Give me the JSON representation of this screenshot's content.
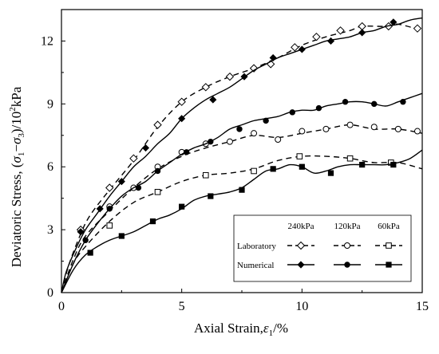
{
  "chart_data": {
    "type": "line",
    "xlabel": "Axial Strain,",
    "xlabel_symbol": "ε",
    "xlabel_sub": "1",
    "xlabel_unit": "/%",
    "ylabel_prefix": "Deviatoric Stress, (",
    "ylabel_s1": "σ",
    "ylabel_sub1": "1",
    "ylabel_minus": "−",
    "ylabel_s3": "σ",
    "ylabel_sub3": "3",
    "ylabel_suffix": ")/10",
    "ylabel_sup": "2",
    "ylabel_unit": "kPa",
    "xlim": [
      0,
      15
    ],
    "ylim": [
      0,
      13.5
    ],
    "xticks": [
      0,
      5,
      10,
      15
    ],
    "yticks": [
      0,
      3,
      6,
      9,
      12
    ],
    "grid": false,
    "legend": {
      "placement": "bottom-right",
      "columns": [
        "240kPa",
        "120kPa",
        "60kPa"
      ],
      "rows": [
        "Laboratory",
        "Numerical"
      ]
    },
    "series": [
      {
        "key": "lab240",
        "group": "240kPa",
        "kind": "Laboratory",
        "marker": "diamond-open",
        "dash": true,
        "x": [
          0,
          0.3,
          0.8,
          1.2,
          2,
          3,
          4,
          5,
          6,
          7,
          8,
          9,
          10,
          11,
          12,
          12.5,
          13.5,
          14,
          15
        ],
        "y": [
          0,
          1.3,
          2.8,
          3.7,
          4.9,
          6.3,
          7.9,
          9.1,
          9.8,
          10.3,
          10.7,
          11.2,
          11.8,
          12.2,
          12.5,
          12.7,
          12.7,
          12.8,
          12.5
        ],
        "markers": [
          [
            0.8,
            3.0
          ],
          [
            2.0,
            5.0
          ],
          [
            3.0,
            6.4
          ],
          [
            4.0,
            8.0
          ],
          [
            5.0,
            9.1
          ],
          [
            6.0,
            9.8
          ],
          [
            7.0,
            10.3
          ],
          [
            8.0,
            10.7
          ],
          [
            8.7,
            10.9
          ],
          [
            9.7,
            11.7
          ],
          [
            10.6,
            12.2
          ],
          [
            11.6,
            12.5
          ],
          [
            12.5,
            12.7
          ],
          [
            13.6,
            12.7
          ],
          [
            14.8,
            12.6
          ]
        ]
      },
      {
        "key": "lab120",
        "group": "120kPa",
        "kind": "Laboratory",
        "marker": "circle-open",
        "dash": true,
        "x": [
          0,
          0.5,
          1,
          2,
          3,
          4,
          5,
          6,
          7,
          8,
          9,
          10,
          11,
          12,
          13,
          14,
          15
        ],
        "y": [
          0,
          1.6,
          2.7,
          3.9,
          5.0,
          5.9,
          6.5,
          6.9,
          7.2,
          7.5,
          7.4,
          7.6,
          7.8,
          8.0,
          7.8,
          7.8,
          7.6
        ],
        "markers": [
          [
            2.0,
            4.1
          ],
          [
            3.0,
            5.0
          ],
          [
            4.0,
            6.0
          ],
          [
            5.0,
            6.7
          ],
          [
            6.0,
            7.1
          ],
          [
            7.0,
            7.2
          ],
          [
            8.0,
            7.6
          ],
          [
            9.0,
            7.3
          ],
          [
            10.0,
            7.7
          ],
          [
            11.0,
            7.8
          ],
          [
            12.0,
            8.0
          ],
          [
            13.0,
            7.9
          ],
          [
            14.0,
            7.8
          ],
          [
            14.8,
            7.7
          ]
        ]
      },
      {
        "key": "lab60",
        "group": "60kPa",
        "kind": "Laboratory",
        "marker": "square-open",
        "dash": true,
        "x": [
          0,
          0.5,
          1,
          2,
          3,
          4,
          5,
          6,
          7,
          8,
          9,
          10,
          11,
          12,
          13,
          14,
          15
        ],
        "y": [
          0,
          1.4,
          2.2,
          3.4,
          4.3,
          4.8,
          5.3,
          5.6,
          5.7,
          5.9,
          6.3,
          6.5,
          6.5,
          6.4,
          6.2,
          6.2,
          5.9
        ],
        "markers": [
          [
            2.0,
            3.2
          ],
          [
            4.0,
            4.8
          ],
          [
            6.0,
            5.6
          ],
          [
            8.0,
            5.8
          ],
          [
            9.9,
            6.5
          ],
          [
            12.0,
            6.4
          ],
          [
            13.7,
            6.2
          ]
        ]
      },
      {
        "key": "num240",
        "group": "240kPa",
        "kind": "Numerical",
        "marker": "diamond-filled",
        "dash": false,
        "x": [
          0,
          0.2,
          0.6,
          1,
          1.5,
          2,
          2.5,
          3,
          3.5,
          4,
          4.5,
          5,
          5.5,
          6,
          6.5,
          7,
          7.5,
          8,
          8.5,
          9,
          9.5,
          10,
          10.5,
          11,
          11.5,
          12,
          12.5,
          13,
          13.5,
          14,
          14.5,
          15
        ],
        "y": [
          0,
          1.0,
          2.1,
          3.0,
          3.8,
          4.6,
          5.3,
          6.0,
          6.5,
          7.1,
          7.6,
          8.3,
          8.8,
          9.2,
          9.5,
          9.8,
          10.2,
          10.6,
          10.9,
          11.2,
          11.4,
          11.6,
          11.8,
          12.0,
          12.1,
          12.2,
          12.4,
          12.5,
          12.7,
          12.8,
          13.0,
          13.1
        ],
        "markers": [
          [
            0.8,
            2.9
          ],
          [
            1.6,
            4.0
          ],
          [
            2.5,
            5.3
          ],
          [
            3.5,
            6.9
          ],
          [
            5.0,
            8.3
          ],
          [
            6.3,
            9.2
          ],
          [
            7.6,
            10.3
          ],
          [
            8.8,
            11.2
          ],
          [
            10.0,
            11.6
          ],
          [
            11.2,
            12.0
          ],
          [
            12.5,
            12.4
          ],
          [
            13.8,
            12.9
          ]
        ]
      },
      {
        "key": "num120",
        "group": "120kPa",
        "kind": "Numerical",
        "marker": "circle-filled",
        "dash": false,
        "x": [
          0,
          0.5,
          1,
          1.5,
          2,
          2.5,
          3,
          3.5,
          4,
          4.5,
          5,
          5.5,
          6,
          6.5,
          7,
          7.5,
          8,
          8.5,
          9,
          9.5,
          10,
          10.5,
          11,
          11.5,
          12,
          12.5,
          13,
          13.5,
          14,
          14.5,
          15
        ],
        "y": [
          0,
          1.4,
          2.5,
          3.3,
          4.0,
          4.6,
          5.0,
          5.3,
          5.8,
          6.2,
          6.6,
          6.9,
          7.1,
          7.4,
          7.8,
          8.0,
          8.2,
          8.3,
          8.4,
          8.6,
          8.7,
          8.7,
          8.9,
          9.0,
          9.1,
          9.1,
          9.0,
          8.9,
          9.1,
          9.3,
          9.5
        ],
        "markers": [
          [
            1.0,
            2.5
          ],
          [
            2.0,
            4.0
          ],
          [
            3.2,
            5.0
          ],
          [
            4.0,
            5.8
          ],
          [
            5.2,
            6.7
          ],
          [
            6.2,
            7.2
          ],
          [
            7.4,
            7.8
          ],
          [
            8.5,
            8.2
          ],
          [
            9.6,
            8.6
          ],
          [
            10.7,
            8.8
          ],
          [
            11.8,
            9.1
          ],
          [
            13.0,
            9.0
          ],
          [
            14.2,
            9.1
          ]
        ]
      },
      {
        "key": "num60",
        "group": "60kPa",
        "kind": "Numerical",
        "marker": "square-filled",
        "dash": false,
        "x": [
          0,
          0.5,
          1,
          1.5,
          2,
          2.5,
          3,
          3.5,
          4,
          4.5,
          5,
          5.5,
          6,
          6.5,
          7,
          7.5,
          8,
          8.5,
          9,
          9.5,
          10,
          10.5,
          11,
          11.5,
          12,
          12.5,
          13,
          13.5,
          14,
          14.5,
          15
        ],
        "y": [
          0,
          1.1,
          1.8,
          2.2,
          2.5,
          2.7,
          2.9,
          3.2,
          3.5,
          3.7,
          4.0,
          4.4,
          4.6,
          4.7,
          4.8,
          5.0,
          5.4,
          5.8,
          5.9,
          6.1,
          6.0,
          5.7,
          5.8,
          6.0,
          6.1,
          6.1,
          6.1,
          6.1,
          6.2,
          6.4,
          6.8
        ],
        "markers": [
          [
            1.2,
            1.9
          ],
          [
            2.5,
            2.7
          ],
          [
            3.8,
            3.4
          ],
          [
            5.0,
            4.1
          ],
          [
            6.2,
            4.6
          ],
          [
            7.5,
            4.9
          ],
          [
            8.8,
            5.9
          ],
          [
            10.0,
            6.0
          ],
          [
            11.2,
            5.7
          ],
          [
            12.5,
            6.1
          ],
          [
            13.8,
            6.1
          ]
        ]
      }
    ]
  }
}
